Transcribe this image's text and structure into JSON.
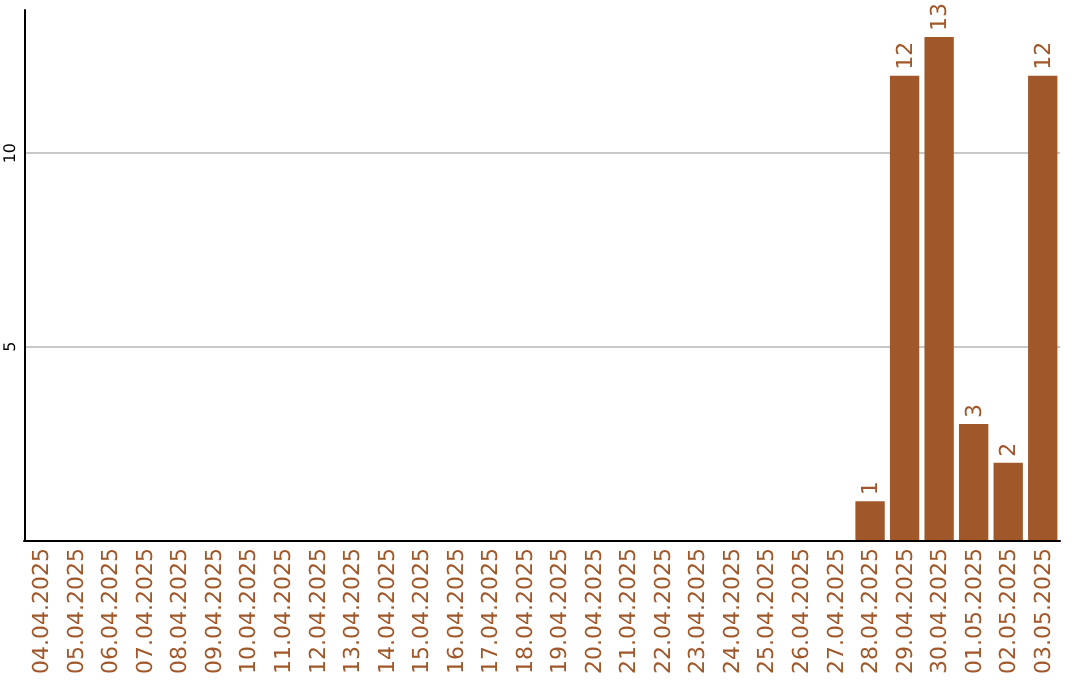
{
  "chart_data": {
    "type": "bar",
    "categories": [
      "04.04.2025",
      "05.04.2025",
      "06.04.2025",
      "07.04.2025",
      "08.04.2025",
      "09.04.2025",
      "10.04.2025",
      "11.04.2025",
      "12.04.2025",
      "13.04.2025",
      "14.04.2025",
      "15.04.2025",
      "16.04.2025",
      "17.04.2025",
      "18.04.2025",
      "19.04.2025",
      "20.04.2025",
      "21.04.2025",
      "22.04.2025",
      "23.04.2025",
      "24.04.2025",
      "25.04.2025",
      "26.04.2025",
      "27.04.2025",
      "28.04.2025",
      "29.04.2025",
      "30.04.2025",
      "01.05.2025",
      "02.05.2025",
      "03.05.2025"
    ],
    "values": [
      0,
      0,
      0,
      0,
      0,
      0,
      0,
      0,
      0,
      0,
      0,
      0,
      0,
      0,
      0,
      0,
      0,
      0,
      0,
      0,
      0,
      0,
      0,
      0,
      1,
      12,
      13,
      3,
      2,
      12
    ],
    "value_labels": [
      null,
      null,
      null,
      null,
      null,
      null,
      null,
      null,
      null,
      null,
      null,
      null,
      null,
      null,
      null,
      null,
      null,
      null,
      null,
      null,
      null,
      null,
      null,
      null,
      "1",
      "12",
      "13",
      "3",
      "2",
      "12"
    ],
    "color": "#a0582a",
    "ylim": [
      0,
      13.7
    ],
    "yticks": [
      5,
      10
    ],
    "grid": "y"
  }
}
